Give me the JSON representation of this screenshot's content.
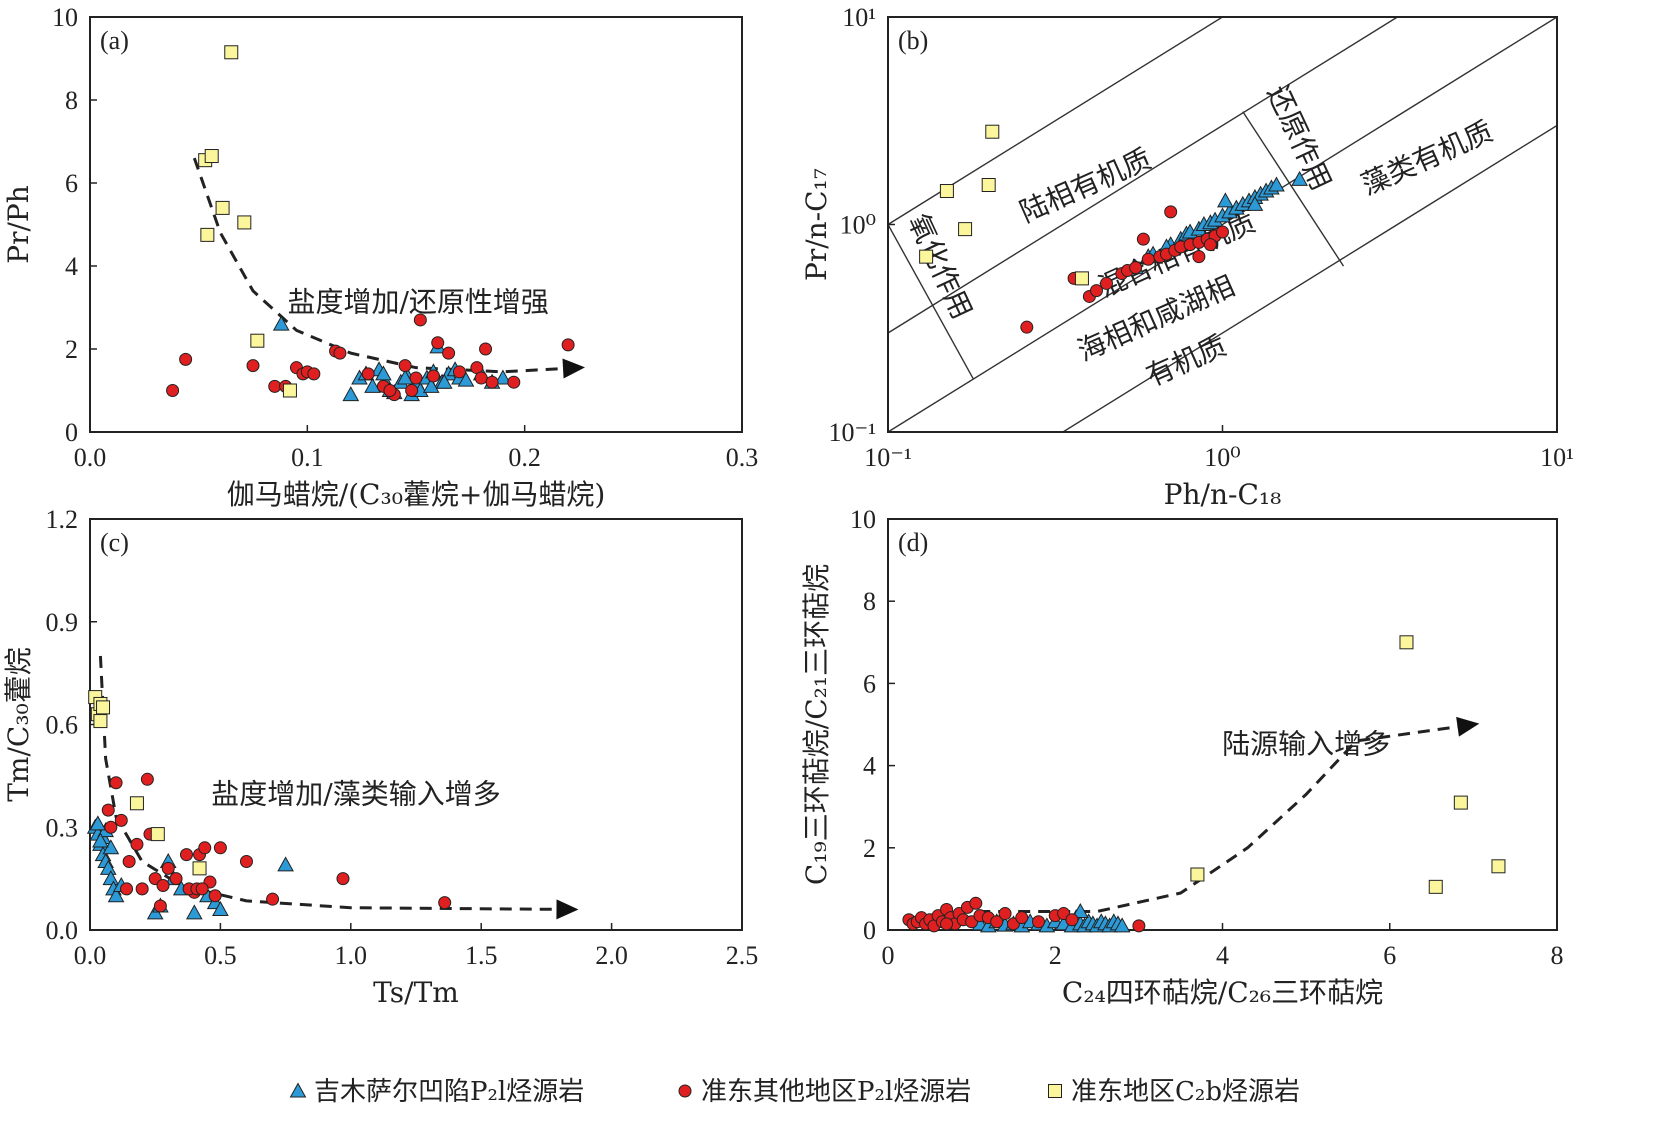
{
  "colors": {
    "triangle": "#2b9ad6",
    "circle": "#e02020",
    "square": "#fbf59c",
    "outline": "#222222"
  },
  "legend": {
    "items": [
      {
        "marker": "triangle",
        "label": "吉木萨尔凹陷P₂l烃源岩"
      },
      {
        "marker": "circle",
        "label": "准东其他地区P₂l烃源岩"
      },
      {
        "marker": "square",
        "label": "准东地区C₂b烃源岩"
      }
    ]
  },
  "chart_data": [
    {
      "panel": "(a)",
      "type": "scatter",
      "xlabel": "伽马蜡烷/(C₃₀藿烷+伽马蜡烷)",
      "ylabel": "Pr/Ph",
      "xlim": [
        0,
        0.3
      ],
      "ylim": [
        0,
        10
      ],
      "xticks": [
        "0.0",
        "0.1",
        "0.2",
        "0.3"
      ],
      "yticks": [
        "0",
        "2",
        "4",
        "6",
        "8",
        "10"
      ],
      "annotations": [
        {
          "text": "盐度增加/还原性增强",
          "x": 0.151,
          "y": 2.9
        }
      ],
      "trend": [
        [
          0.048,
          6.6
        ],
        [
          0.06,
          4.8
        ],
        [
          0.075,
          3.4
        ],
        [
          0.095,
          2.45
        ],
        [
          0.12,
          1.9
        ],
        [
          0.15,
          1.55
        ],
        [
          0.19,
          1.45
        ],
        [
          0.225,
          1.55
        ]
      ],
      "series": [
        {
          "name": "吉木萨尔凹陷P₂l烃源岩",
          "marker": "triangle",
          "x": [
            0.088,
            0.124,
            0.127,
            0.13,
            0.133,
            0.136,
            0.138,
            0.14,
            0.143,
            0.146,
            0.148,
            0.15,
            0.152,
            0.155,
            0.158,
            0.16,
            0.162,
            0.165,
            0.168,
            0.17,
            0.173,
            0.18,
            0.185,
            0.19,
            0.157,
            0.145,
            0.135,
            0.12,
            0.163
          ],
          "y": [
            2.6,
            1.3,
            1.4,
            1.1,
            1.5,
            1.2,
            1.0,
            0.95,
            1.2,
            1.35,
            0.9,
            1.2,
            1.0,
            1.3,
            1.45,
            2.05,
            1.2,
            1.4,
            1.5,
            1.3,
            1.25,
            1.4,
            1.2,
            1.3,
            1.1,
            1.3,
            1.4,
            0.9,
            1.2
          ]
        },
        {
          "name": "准东其他地区P₂l烃源岩",
          "marker": "circle",
          "x": [
            0.038,
            0.044,
            0.075,
            0.085,
            0.09,
            0.095,
            0.098,
            0.1,
            0.103,
            0.113,
            0.115,
            0.128,
            0.135,
            0.14,
            0.145,
            0.148,
            0.152,
            0.158,
            0.16,
            0.165,
            0.17,
            0.178,
            0.18,
            0.182,
            0.185,
            0.195,
            0.22,
            0.138,
            0.15
          ],
          "y": [
            1.0,
            1.75,
            1.6,
            1.1,
            1.1,
            1.55,
            1.4,
            1.45,
            1.4,
            1.95,
            1.9,
            1.4,
            1.1,
            0.9,
            1.6,
            1.0,
            2.7,
            1.35,
            2.15,
            1.9,
            1.45,
            1.55,
            1.3,
            2.0,
            1.2,
            1.2,
            2.1,
            1.0,
            1.3
          ]
        },
        {
          "name": "准东地区C₂b烃源岩",
          "marker": "square",
          "x": [
            0.053,
            0.054,
            0.056,
            0.061,
            0.065,
            0.071,
            0.077,
            0.092
          ],
          "y": [
            6.55,
            4.75,
            6.65,
            5.4,
            9.15,
            5.05,
            2.2,
            1.0
          ]
        }
      ]
    },
    {
      "panel": "(b)",
      "type": "scatter",
      "xlabel": "Ph/n-C₁₈",
      "ylabel": "Pr/n-C₁₇",
      "xscale": "log",
      "yscale": "log",
      "xlim": [
        0.1,
        10
      ],
      "ylim": [
        0.1,
        10
      ],
      "xticks": [
        "10⁻¹",
        "10⁰",
        "10¹"
      ],
      "yticks": [
        "10⁻¹",
        "10⁰",
        "10¹"
      ],
      "regions": [
        "陆相有机质",
        "混合相有机质",
        "海相和咸湖相",
        "有机质",
        "藻类有机质",
        "氧化作用",
        "还原作用"
      ],
      "series": [
        {
          "name": "吉木萨尔凹陷P₂l烃源岩",
          "marker": "triangle",
          "x": [
            0.55,
            0.6,
            0.62,
            0.7,
            0.75,
            0.78,
            0.8,
            0.85,
            0.88,
            0.92,
            0.95,
            1.0,
            1.05,
            1.1,
            1.15,
            1.2,
            1.25,
            1.3,
            1.35,
            1.4,
            1.45,
            1.7,
            0.68,
            1.02,
            1.25
          ],
          "y": [
            0.62,
            0.7,
            0.72,
            0.8,
            0.85,
            0.9,
            0.92,
            0.95,
            1.0,
            1.02,
            1.05,
            1.1,
            1.15,
            1.2,
            1.25,
            1.3,
            1.35,
            1.4,
            1.45,
            1.5,
            1.55,
            1.65,
            0.78,
            1.3,
            1.25
          ]
        },
        {
          "name": "准东其他地区P₂l烃源岩",
          "marker": "circle",
          "x": [
            0.26,
            0.36,
            0.4,
            0.42,
            0.45,
            0.5,
            0.52,
            0.55,
            0.58,
            0.6,
            0.65,
            0.68,
            0.7,
            0.72,
            0.75,
            0.8,
            0.85,
            0.9,
            0.95,
            1.0,
            0.85,
            0.92
          ],
          "y": [
            0.32,
            0.55,
            0.45,
            0.48,
            0.52,
            0.58,
            0.6,
            0.62,
            0.85,
            0.68,
            0.7,
            0.72,
            1.15,
            0.75,
            0.78,
            0.8,
            0.82,
            0.85,
            0.88,
            0.92,
            0.7,
            0.8
          ]
        },
        {
          "name": "准东地区C₂b烃源岩",
          "marker": "square",
          "x": [
            0.13,
            0.15,
            0.17,
            0.2,
            0.205,
            0.38
          ],
          "y": [
            0.7,
            1.45,
            0.95,
            1.55,
            2.8,
            0.55
          ]
        }
      ]
    },
    {
      "panel": "(c)",
      "type": "scatter",
      "xlabel": "Ts/Tm",
      "ylabel": "Tm/C₃₀藿烷",
      "xlim": [
        0,
        2.5
      ],
      "ylim": [
        0,
        1.2
      ],
      "xticks": [
        "0.0",
        "0.5",
        "1.0",
        "1.5",
        "2.0",
        "2.5"
      ],
      "yticks": [
        "0.0",
        "0.3",
        "0.6",
        "0.9",
        "1.2"
      ],
      "annotations": [
        {
          "text": "盐度增加/藻类输入增多",
          "x": 1.02,
          "y": 0.37
        }
      ],
      "trend": [
        [
          0.04,
          0.8
        ],
        [
          0.06,
          0.5
        ],
        [
          0.1,
          0.33
        ],
        [
          0.2,
          0.2
        ],
        [
          0.35,
          0.13
        ],
        [
          0.6,
          0.085
        ],
        [
          1.0,
          0.065
        ],
        [
          1.85,
          0.06
        ]
      ],
      "series": [
        {
          "name": "吉木萨尔凹陷P₂l烃源岩",
          "marker": "triangle",
          "x": [
            0.02,
            0.03,
            0.04,
            0.05,
            0.06,
            0.07,
            0.08,
            0.09,
            0.1,
            0.12,
            0.25,
            0.27,
            0.3,
            0.32,
            0.35,
            0.4,
            0.45,
            0.48,
            0.5,
            0.75,
            0.05,
            0.08,
            0.06,
            0.04,
            0.03
          ],
          "y": [
            0.3,
            0.28,
            0.25,
            0.22,
            0.2,
            0.18,
            0.15,
            0.12,
            0.1,
            0.13,
            0.05,
            0.07,
            0.2,
            0.15,
            0.12,
            0.05,
            0.1,
            0.08,
            0.06,
            0.19,
            0.27,
            0.24,
            0.29,
            0.26,
            0.31
          ]
        },
        {
          "name": "准东其他地区P₂l烃源岩",
          "marker": "circle",
          "x": [
            0.07,
            0.1,
            0.12,
            0.15,
            0.18,
            0.2,
            0.22,
            0.23,
            0.25,
            0.27,
            0.3,
            0.33,
            0.37,
            0.4,
            0.42,
            0.44,
            0.46,
            0.48,
            0.5,
            0.6,
            0.7,
            0.97,
            1.36,
            0.08,
            0.14,
            0.28,
            0.38,
            0.41,
            0.43
          ],
          "y": [
            0.35,
            0.43,
            0.32,
            0.2,
            0.25,
            0.12,
            0.44,
            0.28,
            0.15,
            0.07,
            0.18,
            0.15,
            0.22,
            0.11,
            0.22,
            0.24,
            0.14,
            0.1,
            0.24,
            0.2,
            0.09,
            0.15,
            0.08,
            0.3,
            0.12,
            0.13,
            0.12,
            0.12,
            0.12
          ]
        },
        {
          "name": "准东地区C₂b烃源岩",
          "marker": "square",
          "x": [
            0.02,
            0.03,
            0.04,
            0.04,
            0.05,
            0.18,
            0.26,
            0.42
          ],
          "y": [
            0.68,
            0.63,
            0.61,
            0.66,
            0.65,
            0.37,
            0.28,
            0.18
          ]
        }
      ]
    },
    {
      "panel": "(d)",
      "type": "scatter",
      "xlabel": "C₂₄四环萜烷/C₂₆三环萜烷",
      "ylabel": "C₁₉三环萜烷/C₂₁三环萜烷",
      "xlim": [
        0,
        8
      ],
      "ylim": [
        0,
        10
      ],
      "xticks": [
        "0",
        "2",
        "4",
        "6",
        "8"
      ],
      "yticks": [
        "0",
        "2",
        "4",
        "6",
        "8",
        "10"
      ],
      "annotations": [
        {
          "text": "陆源输入增多",
          "x": 5.0,
          "y": 4.3
        }
      ],
      "trend": [
        [
          0.6,
          0.45
        ],
        [
          2.5,
          0.45
        ],
        [
          3.5,
          0.9
        ],
        [
          4.3,
          2.0
        ],
        [
          5.0,
          3.3
        ],
        [
          5.6,
          4.6
        ],
        [
          7.0,
          5.0
        ]
      ],
      "series": [
        {
          "name": "吉木萨尔凹陷P₂l烃源岩",
          "marker": "triangle",
          "x": [
            1.1,
            1.2,
            1.3,
            1.4,
            1.5,
            1.6,
            1.7,
            1.8,
            1.9,
            2.0,
            2.1,
            2.2,
            2.25,
            2.3,
            2.35,
            2.4,
            2.45,
            2.5,
            2.55,
            2.6,
            2.65,
            2.7,
            2.75,
            2.8,
            2.3
          ],
          "y": [
            0.15,
            0.1,
            0.2,
            0.12,
            0.15,
            0.1,
            0.2,
            0.15,
            0.1,
            0.2,
            0.15,
            0.1,
            0.3,
            0.15,
            0.1,
            0.2,
            0.15,
            0.1,
            0.2,
            0.15,
            0.1,
            0.2,
            0.15,
            0.1,
            0.45
          ]
        },
        {
          "name": "准东其他地区P₂l烃源岩",
          "marker": "circle",
          "x": [
            0.25,
            0.3,
            0.35,
            0.4,
            0.45,
            0.5,
            0.55,
            0.6,
            0.65,
            0.7,
            0.75,
            0.8,
            0.85,
            0.9,
            0.95,
            1.0,
            1.05,
            1.1,
            1.2,
            1.3,
            1.4,
            1.5,
            1.6,
            1.8,
            2.0,
            2.1,
            2.2,
            3.0,
            0.7
          ],
          "y": [
            0.25,
            0.15,
            0.2,
            0.3,
            0.15,
            0.25,
            0.1,
            0.35,
            0.2,
            0.5,
            0.3,
            0.15,
            0.4,
            0.25,
            0.55,
            0.2,
            0.65,
            0.35,
            0.3,
            0.2,
            0.4,
            0.15,
            0.3,
            0.2,
            0.35,
            0.4,
            0.25,
            0.1,
            0.15
          ]
        },
        {
          "name": "准东地区C₂b烃源岩",
          "marker": "square",
          "x": [
            3.7,
            6.2,
            6.55,
            6.85,
            7.3
          ],
          "y": [
            1.35,
            7.0,
            1.05,
            3.1,
            1.55
          ]
        }
      ]
    }
  ]
}
